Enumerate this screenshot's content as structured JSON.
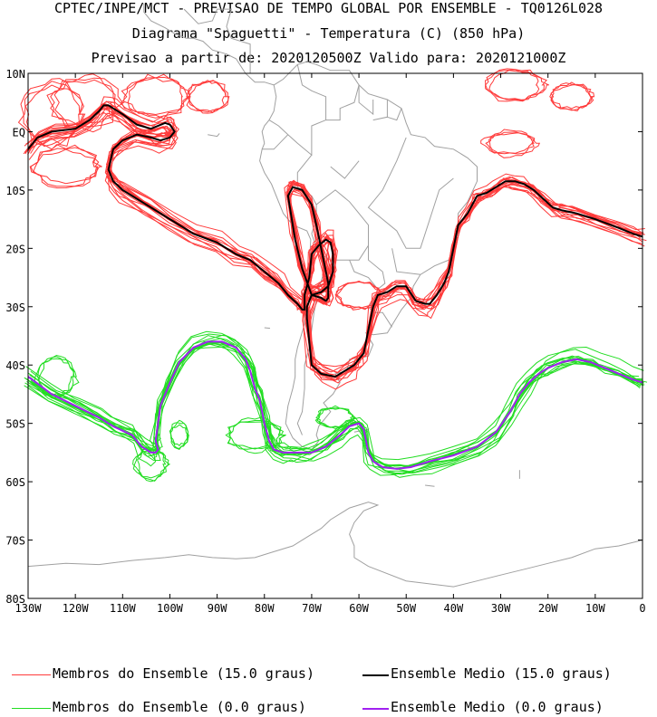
{
  "header": {
    "line1": "CPTEC/INPE/MCT - PREVISAO DE TEMPO GLOBAL POR ENSEMBLE - TQ0126L028",
    "line2": "Diagrama \"Spaguetti\" - Temperatura (C) (850 hPa)",
    "line3": "Previsao a partir de: 2020120500Z  Valido para: 2020121000Z"
  },
  "colors": {
    "member_15": "#ff3a3a",
    "mean_15": "#000000",
    "member_0": "#22dd22",
    "mean_0": "#a020f0",
    "coast": "#a0a0a0"
  },
  "legend": [
    {
      "label": "Membros do Ensemble (15.0 graus)",
      "color": "#ff3a3a",
      "weight": "thin"
    },
    {
      "label": "Ensemble Medio (15.0 graus)",
      "color": "#000000",
      "weight": "thick"
    },
    {
      "label": "Membros do Ensemble (0.0 graus)",
      "color": "#22dd22",
      "weight": "thin"
    },
    {
      "label": "Ensemble Medio (0.0 graus)",
      "color": "#a020f0",
      "weight": "thick"
    }
  ],
  "chart_data": {
    "type": "line",
    "x_ticks": [
      "130W",
      "120W",
      "110W",
      "100W",
      "90W",
      "80W",
      "70W",
      "60W",
      "50W",
      "40W",
      "30W",
      "20W",
      "10W",
      "0"
    ],
    "y_ticks": [
      "10N",
      "EQ",
      "10S",
      "20S",
      "30S",
      "40S",
      "50S",
      "60S",
      "70S",
      "80S"
    ],
    "xlim": [
      -130,
      0
    ],
    "ylim": [
      -80,
      10
    ],
    "series": [
      {
        "name": "Ensemble Medio (15.0 graus)",
        "x": [
          -130,
          -128,
          -125,
          -120,
          -117,
          -115,
          -114,
          -113,
          -112,
          -110,
          -107,
          -104,
          -101,
          -100,
          -99,
          -100,
          -102,
          -104,
          -107,
          -110,
          -112,
          -113,
          -112,
          -110,
          -105,
          -100,
          -95,
          -90,
          -86,
          -83,
          -80,
          -77,
          -75,
          -73,
          -72,
          -71.5,
          -71.5,
          -71,
          -70.5,
          -70,
          -68.5,
          -67,
          -66,
          -65.5,
          -65.5,
          -66.5,
          -68,
          -70,
          -72,
          -73.5,
          -75,
          -74,
          -72,
          -70,
          -69,
          -68,
          -67,
          -66.5,
          -66.5,
          -67,
          -68,
          -70,
          -71,
          -71,
          -70,
          -68,
          -65,
          -63,
          -61,
          -60,
          -59,
          -58.5,
          -58,
          -57,
          -56,
          -54,
          -52,
          -50,
          -48,
          -46,
          -45,
          -43.5,
          -42,
          -41,
          -40,
          -39,
          -37,
          -35,
          -33,
          -31,
          -29,
          -27,
          -25,
          -23,
          -21,
          -19,
          -17,
          -14,
          -10,
          -5,
          -2,
          0
        ],
        "y": [
          -3,
          -1,
          0,
          0.5,
          2,
          3.5,
          4.5,
          4.5,
          4,
          3,
          1.2,
          0.5,
          1.5,
          1.2,
          0,
          -1,
          -1.5,
          -1,
          -0.5,
          -1.5,
          -3,
          -6.5,
          -8.5,
          -10,
          -12.5,
          -15,
          -17.5,
          -19,
          -21,
          -22,
          -24,
          -26,
          -28,
          -29.5,
          -30.5,
          -30.5,
          -28,
          -26.5,
          -25,
          -21,
          -19.5,
          -18.5,
          -19,
          -21,
          -24,
          -26.5,
          -27.5,
          -28,
          -23.5,
          -18.5,
          -11,
          -9.5,
          -10,
          -12.5,
          -16,
          -20,
          -24,
          -26,
          -28.5,
          -29,
          -28.5,
          -28,
          -30,
          -32,
          -40,
          -41.5,
          -42,
          -41,
          -40,
          -39,
          -38,
          -36,
          -34,
          -30,
          -28,
          -27.5,
          -26.5,
          -26.5,
          -29,
          -29.5,
          -29.5,
          -28,
          -26,
          -24,
          -20,
          -16,
          -14,
          -11,
          -10.5,
          -9.5,
          -8.5,
          -8.5,
          -9,
          -10,
          -11.5,
          -13,
          -13.5,
          -14,
          -15,
          -16.5,
          -17.5,
          -18
        ]
      },
      {
        "name": "Ensemble Medio (0.0 graus)",
        "x": [
          -130,
          -125,
          -120,
          -115,
          -112,
          -108,
          -106,
          -104,
          -103,
          -102.5,
          -103,
          -102,
          -100,
          -98,
          -95,
          -92,
          -89,
          -86,
          -84,
          -83,
          -82,
          -81,
          -80,
          -79,
          -78,
          -76,
          -74,
          -72,
          -70,
          -67,
          -64,
          -62,
          -60,
          -59,
          -58,
          -57,
          -55,
          -52,
          -49,
          -45,
          -40,
          -35,
          -31,
          -28,
          -26,
          -24,
          -22,
          -20,
          -17,
          -14,
          -11,
          -8,
          -5,
          -2,
          0
        ],
        "y": [
          -42,
          -45,
          -47,
          -49,
          -50.5,
          -52,
          -54,
          -55,
          -55,
          -54.5,
          -53,
          -47,
          -43,
          -39.5,
          -37,
          -36,
          -36,
          -37,
          -39,
          -41,
          -44,
          -46,
          -50,
          -53,
          -54.5,
          -55,
          -55,
          -55,
          -55,
          -54,
          -52,
          -50.5,
          -50,
          -51,
          -55,
          -56.5,
          -57.5,
          -57.8,
          -57.5,
          -56.5,
          -55.5,
          -54,
          -51.5,
          -48,
          -45,
          -43,
          -41.5,
          -40.5,
          -39.5,
          -39,
          -39.5,
          -40.5,
          -41.5,
          -42.5,
          -43
        ]
      }
    ],
    "grid": false,
    "legend_position": "bottom"
  }
}
